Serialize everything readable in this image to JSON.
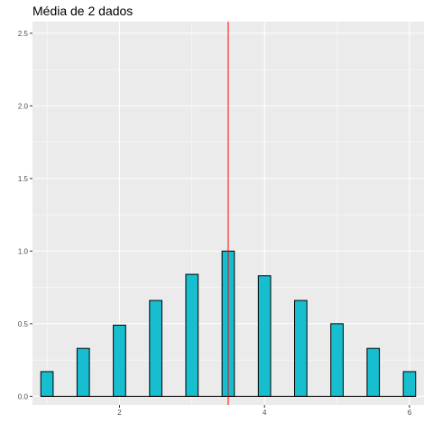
{
  "chart_data": {
    "type": "bar",
    "title": "Média de 2 dados",
    "xlabel": "",
    "ylabel": "",
    "x": [
      1.0,
      1.5,
      2.0,
      2.5,
      3.0,
      3.5,
      4.0,
      4.5,
      5.0,
      5.5,
      6.0
    ],
    "values": [
      0.17,
      0.33,
      0.49,
      0.66,
      0.84,
      1.0,
      0.83,
      0.66,
      0.5,
      0.33,
      0.17
    ],
    "xlim": [
      0.8,
      6.2
    ],
    "ylim": [
      -0.06,
      2.58
    ],
    "x_ticks": [
      2,
      4,
      6
    ],
    "x_tick_labels": [
      "2",
      "4",
      "6"
    ],
    "y_ticks": [
      0.0,
      0.5,
      1.0,
      1.5,
      2.0,
      2.5
    ],
    "y_tick_labels": [
      "0.0",
      "0.5",
      "1.0",
      "1.5",
      "2.0",
      "2.5"
    ],
    "vline": {
      "x": 3.5,
      "color": "#ff0000"
    },
    "bar_fill": "#17becf",
    "bar_stroke": "#000000",
    "panel_background": "#ebebeb",
    "grid": true,
    "legend": "none"
  }
}
